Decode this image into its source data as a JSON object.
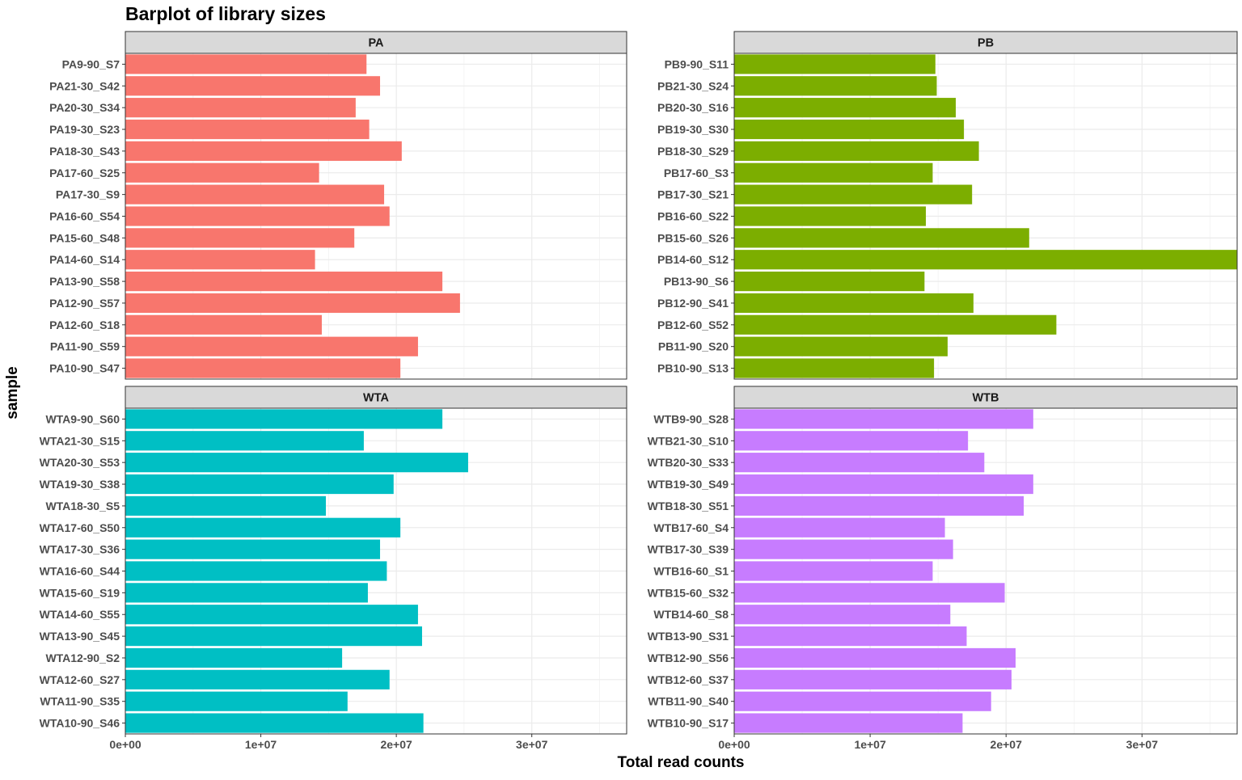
{
  "chart_data": {
    "type": "bar",
    "orientation": "horizontal",
    "title": "Barplot of library sizes",
    "xlabel": "Total read counts",
    "ylabel": "sample",
    "xlim": [
      0,
      37000000
    ],
    "x_ticks": [
      0,
      10000000,
      20000000,
      30000000
    ],
    "x_tick_labels": [
      "0e+00",
      "1e+07",
      "2e+07",
      "3e+07"
    ],
    "grid": true,
    "legend": "none",
    "facets": [
      {
        "name": "PA",
        "color": "#F8766D",
        "categories": [
          "PA9-90_S7",
          "PA21-30_S42",
          "PA20-30_S34",
          "PA19-30_S23",
          "PA18-30_S43",
          "PA17-60_S25",
          "PA17-30_S9",
          "PA16-60_S54",
          "PA15-60_S48",
          "PA14-60_S14",
          "PA13-90_S58",
          "PA12-90_S57",
          "PA12-60_S18",
          "PA11-90_S59",
          "PA10-90_S47"
        ],
        "values": [
          17800000,
          18800000,
          17000000,
          18000000,
          20400000,
          14300000,
          19100000,
          19500000,
          16900000,
          14000000,
          23400000,
          24700000,
          14500000,
          21600000,
          20300000
        ]
      },
      {
        "name": "PB",
        "color": "#7CAE00",
        "categories": [
          "PB9-90_S11",
          "PB21-30_S24",
          "PB20-30_S16",
          "PB19-30_S30",
          "PB18-30_S29",
          "PB17-60_S3",
          "PB17-30_S21",
          "PB16-60_S22",
          "PB15-60_S26",
          "PB14-60_S12",
          "PB13-90_S6",
          "PB12-90_S41",
          "PB12-60_S52",
          "PB11-90_S20",
          "PB10-90_S13"
        ],
        "values": [
          14800000,
          14900000,
          16300000,
          16900000,
          18000000,
          14600000,
          17500000,
          14100000,
          21700000,
          37500000,
          14000000,
          17600000,
          23700000,
          15700000,
          14700000
        ]
      },
      {
        "name": "WTA",
        "color": "#00BFC4",
        "categories": [
          "WTA9-90_S60",
          "WTA21-30_S15",
          "WTA20-30_S53",
          "WTA19-30_S38",
          "WTA18-30_S5",
          "WTA17-60_S50",
          "WTA17-30_S36",
          "WTA16-60_S44",
          "WTA15-60_S19",
          "WTA14-60_S55",
          "WTA13-90_S45",
          "WTA12-90_S2",
          "WTA12-60_S27",
          "WTA11-90_S35",
          "WTA10-90_S46"
        ],
        "values": [
          23400000,
          17600000,
          25300000,
          19800000,
          14800000,
          20300000,
          18800000,
          19300000,
          17900000,
          21600000,
          21900000,
          16000000,
          19500000,
          16400000,
          22000000
        ]
      },
      {
        "name": "WTB",
        "color": "#C77CFF",
        "categories": [
          "WTB9-90_S28",
          "WTB21-30_S10",
          "WTB20-30_S33",
          "WTB19-30_S49",
          "WTB18-30_S51",
          "WTB17-60_S4",
          "WTB17-30_S39",
          "WTB16-60_S1",
          "WTB15-60_S32",
          "WTB14-60_S8",
          "WTB13-90_S31",
          "WTB12-90_S56",
          "WTB12-60_S37",
          "WTB11-90_S40",
          "WTB10-90_S17"
        ],
        "values": [
          22000000,
          17200000,
          18400000,
          22000000,
          21300000,
          15500000,
          16100000,
          14600000,
          19900000,
          15900000,
          17100000,
          20700000,
          20400000,
          18900000,
          16800000
        ]
      }
    ]
  }
}
